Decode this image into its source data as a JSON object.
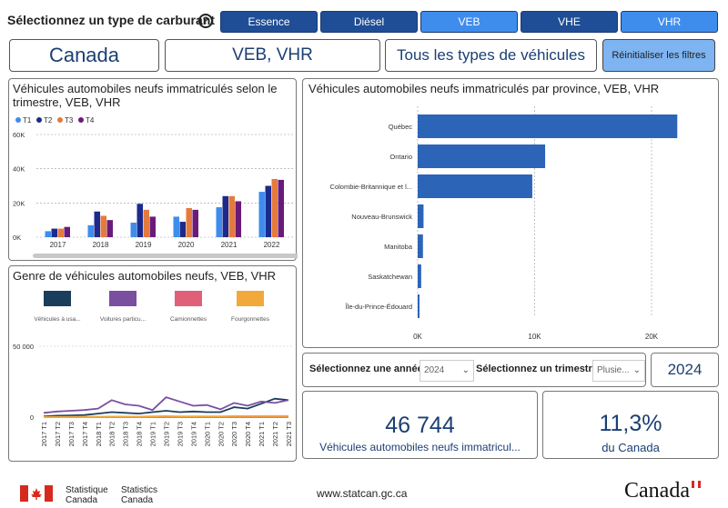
{
  "fuel_selector": {
    "title": "Sélectionnez un type de carburant",
    "help_icon": "?",
    "buttons": [
      {
        "label": "Essence",
        "selected": false
      },
      {
        "label": "Diésel",
        "selected": false
      },
      {
        "label": "VEB",
        "selected": true
      },
      {
        "label": "VHE",
        "selected": false
      },
      {
        "label": "VHR",
        "selected": true
      }
    ]
  },
  "filters": {
    "region": "Canada",
    "fuel": "VEB, VHR",
    "vehicle_type": "Tous les types de véhicules",
    "reset_label": "Réinitialiser les filtres"
  },
  "quarter_chart": {
    "title": "Véhicules automobiles neufs immatriculés selon le trimestre, VEB, VHR",
    "title_line1": "Véhicules automobiles neufs immatriculés selon le",
    "title_line2": "trimestre, VEB, VHR",
    "legend": [
      "T1",
      "T2",
      "T3",
      "T4"
    ],
    "y_ticks": [
      "60K",
      "40K",
      "20K",
      "0K"
    ],
    "categories": [
      "2017",
      "2018",
      "2019",
      "2020",
      "2021",
      "2022"
    ]
  },
  "province_chart": {
    "title": "Véhicules automobiles neufs immatriculés par province, VEB, VHR",
    "categories": [
      "Québec",
      "Ontario",
      "Colombie-Britannique et l...",
      "Nouveau-Brunswick",
      "Manitoba",
      "Saskatchewan",
      "Île-du-Prince-Édouard"
    ],
    "x_ticks": [
      "0K",
      "10K",
      "20K"
    ]
  },
  "genre_chart": {
    "title": "Genre de véhicules automobiles neufs, VEB, VHR",
    "legend": [
      "Véhicules à usa...",
      "Voitures particu...",
      "Camionnettes",
      "Fourgonnettes"
    ],
    "y_ticks": [
      "50 000",
      "0"
    ],
    "x_labels": [
      "2017 T1",
      "2017 T2",
      "2017 T3",
      "2017 T4",
      "2018 T1",
      "2018 T2",
      "2018 T3",
      "2018 T4",
      "2019 T1",
      "2019 T2",
      "2019 T3",
      "2019 T4",
      "2020 T1",
      "2020 T2",
      "2020 T3",
      "2020 T4",
      "2021 T1",
      "2021 T2",
      "2021 T3"
    ]
  },
  "year_selector": {
    "label": "Sélectionnez une année",
    "value": "2024"
  },
  "quarter_selector": {
    "label": "Sélectionnez un trimestre",
    "value": "Plusie..."
  },
  "year_display": "2024",
  "kpi_total": {
    "value": "46 744",
    "label": "Véhicules automobiles neufs immatricul..."
  },
  "kpi_share": {
    "value": "11,3%",
    "label": "du Canada"
  },
  "footer": {
    "statcan_fr_1": "Statistique",
    "statcan_fr_2": "Canada",
    "statcan_en_1": "Statistics",
    "statcan_en_2": "Canada",
    "url": "www.statcan.gc.ca",
    "wordmark": "Canada"
  },
  "colors": {
    "t1": "#3e8ded",
    "t2": "#1b2a8c",
    "t3": "#e57a3e",
    "t4": "#6a1b7a",
    "province_bar": "#2c64b8",
    "genre_1": "#1b3d5c",
    "genre_2": "#7b4fa0",
    "genre_3": "#e0607a",
    "genre_4": "#f2a93b",
    "flag_red": "#d52b1e"
  },
  "chart_data": [
    {
      "type": "bar",
      "title": "Véhicules automobiles neufs immatriculés selon le trimestre, VEB, VHR",
      "categories": [
        "2017",
        "2018",
        "2019",
        "2020",
        "2021",
        "2022"
      ],
      "ylim": [
        0,
        60000
      ],
      "series": [
        {
          "name": "T1",
          "values": [
            3500,
            7000,
            8500,
            12000,
            17500,
            26500
          ]
        },
        {
          "name": "T2",
          "values": [
            5000,
            15000,
            19500,
            9000,
            24000,
            30000
          ]
        },
        {
          "name": "T3",
          "values": [
            5000,
            12500,
            16000,
            17000,
            24000,
            34000
          ]
        },
        {
          "name": "T4",
          "values": [
            6000,
            10000,
            12000,
            16000,
            21000,
            33500
          ]
        }
      ]
    },
    {
      "type": "bar",
      "orientation": "horizontal",
      "title": "Véhicules automobiles neufs immatriculés par province, VEB, VHR",
      "categories": [
        "Québec",
        "Ontario",
        "Colombie-Britannique et l...",
        "Nouveau-Brunswick",
        "Manitoba",
        "Saskatchewan",
        "Île-du-Prince-Édouard"
      ],
      "values": [
        22200,
        10900,
        9800,
        500,
        450,
        300,
        100
      ],
      "xlim": [
        0,
        25000
      ]
    },
    {
      "type": "line",
      "title": "Genre de véhicules automobiles neufs, VEB, VHR",
      "x": [
        "2017 T1",
        "2017 T2",
        "2017 T3",
        "2017 T4",
        "2018 T1",
        "2018 T2",
        "2018 T3",
        "2018 T4",
        "2019 T1",
        "2019 T2",
        "2019 T3",
        "2019 T4",
        "2020 T1",
        "2020 T2",
        "2020 T3",
        "2020 T4",
        "2021 T1",
        "2021 T2",
        "2021 T3"
      ],
      "ylim": [
        -10000,
        60000
      ],
      "series": [
        {
          "name": "Véhicules à usa...",
          "values": [
            500,
            1000,
            1200,
            1500,
            2500,
            3500,
            3000,
            2500,
            3500,
            4500,
            3500,
            4000,
            3500,
            3500,
            7000,
            6000,
            9500,
            13000,
            12000
          ]
        },
        {
          "name": "Voitures particu...",
          "values": [
            3000,
            4000,
            4500,
            5000,
            6000,
            12000,
            9000,
            8000,
            5000,
            14000,
            11000,
            8000,
            8500,
            5500,
            10000,
            8000,
            11000,
            10000,
            12000
          ]
        },
        {
          "name": "Camionnettes",
          "values": [
            0,
            0,
            0,
            0,
            0,
            0,
            0,
            0,
            0,
            0,
            0,
            0,
            0,
            0,
            0,
            0,
            0,
            0,
            0
          ]
        },
        {
          "name": "Fourgonnettes",
          "values": [
            100,
            150,
            200,
            200,
            300,
            400,
            400,
            400,
            500,
            700,
            600,
            600,
            600,
            600,
            800,
            700,
            800,
            800,
            800
          ]
        }
      ]
    }
  ]
}
